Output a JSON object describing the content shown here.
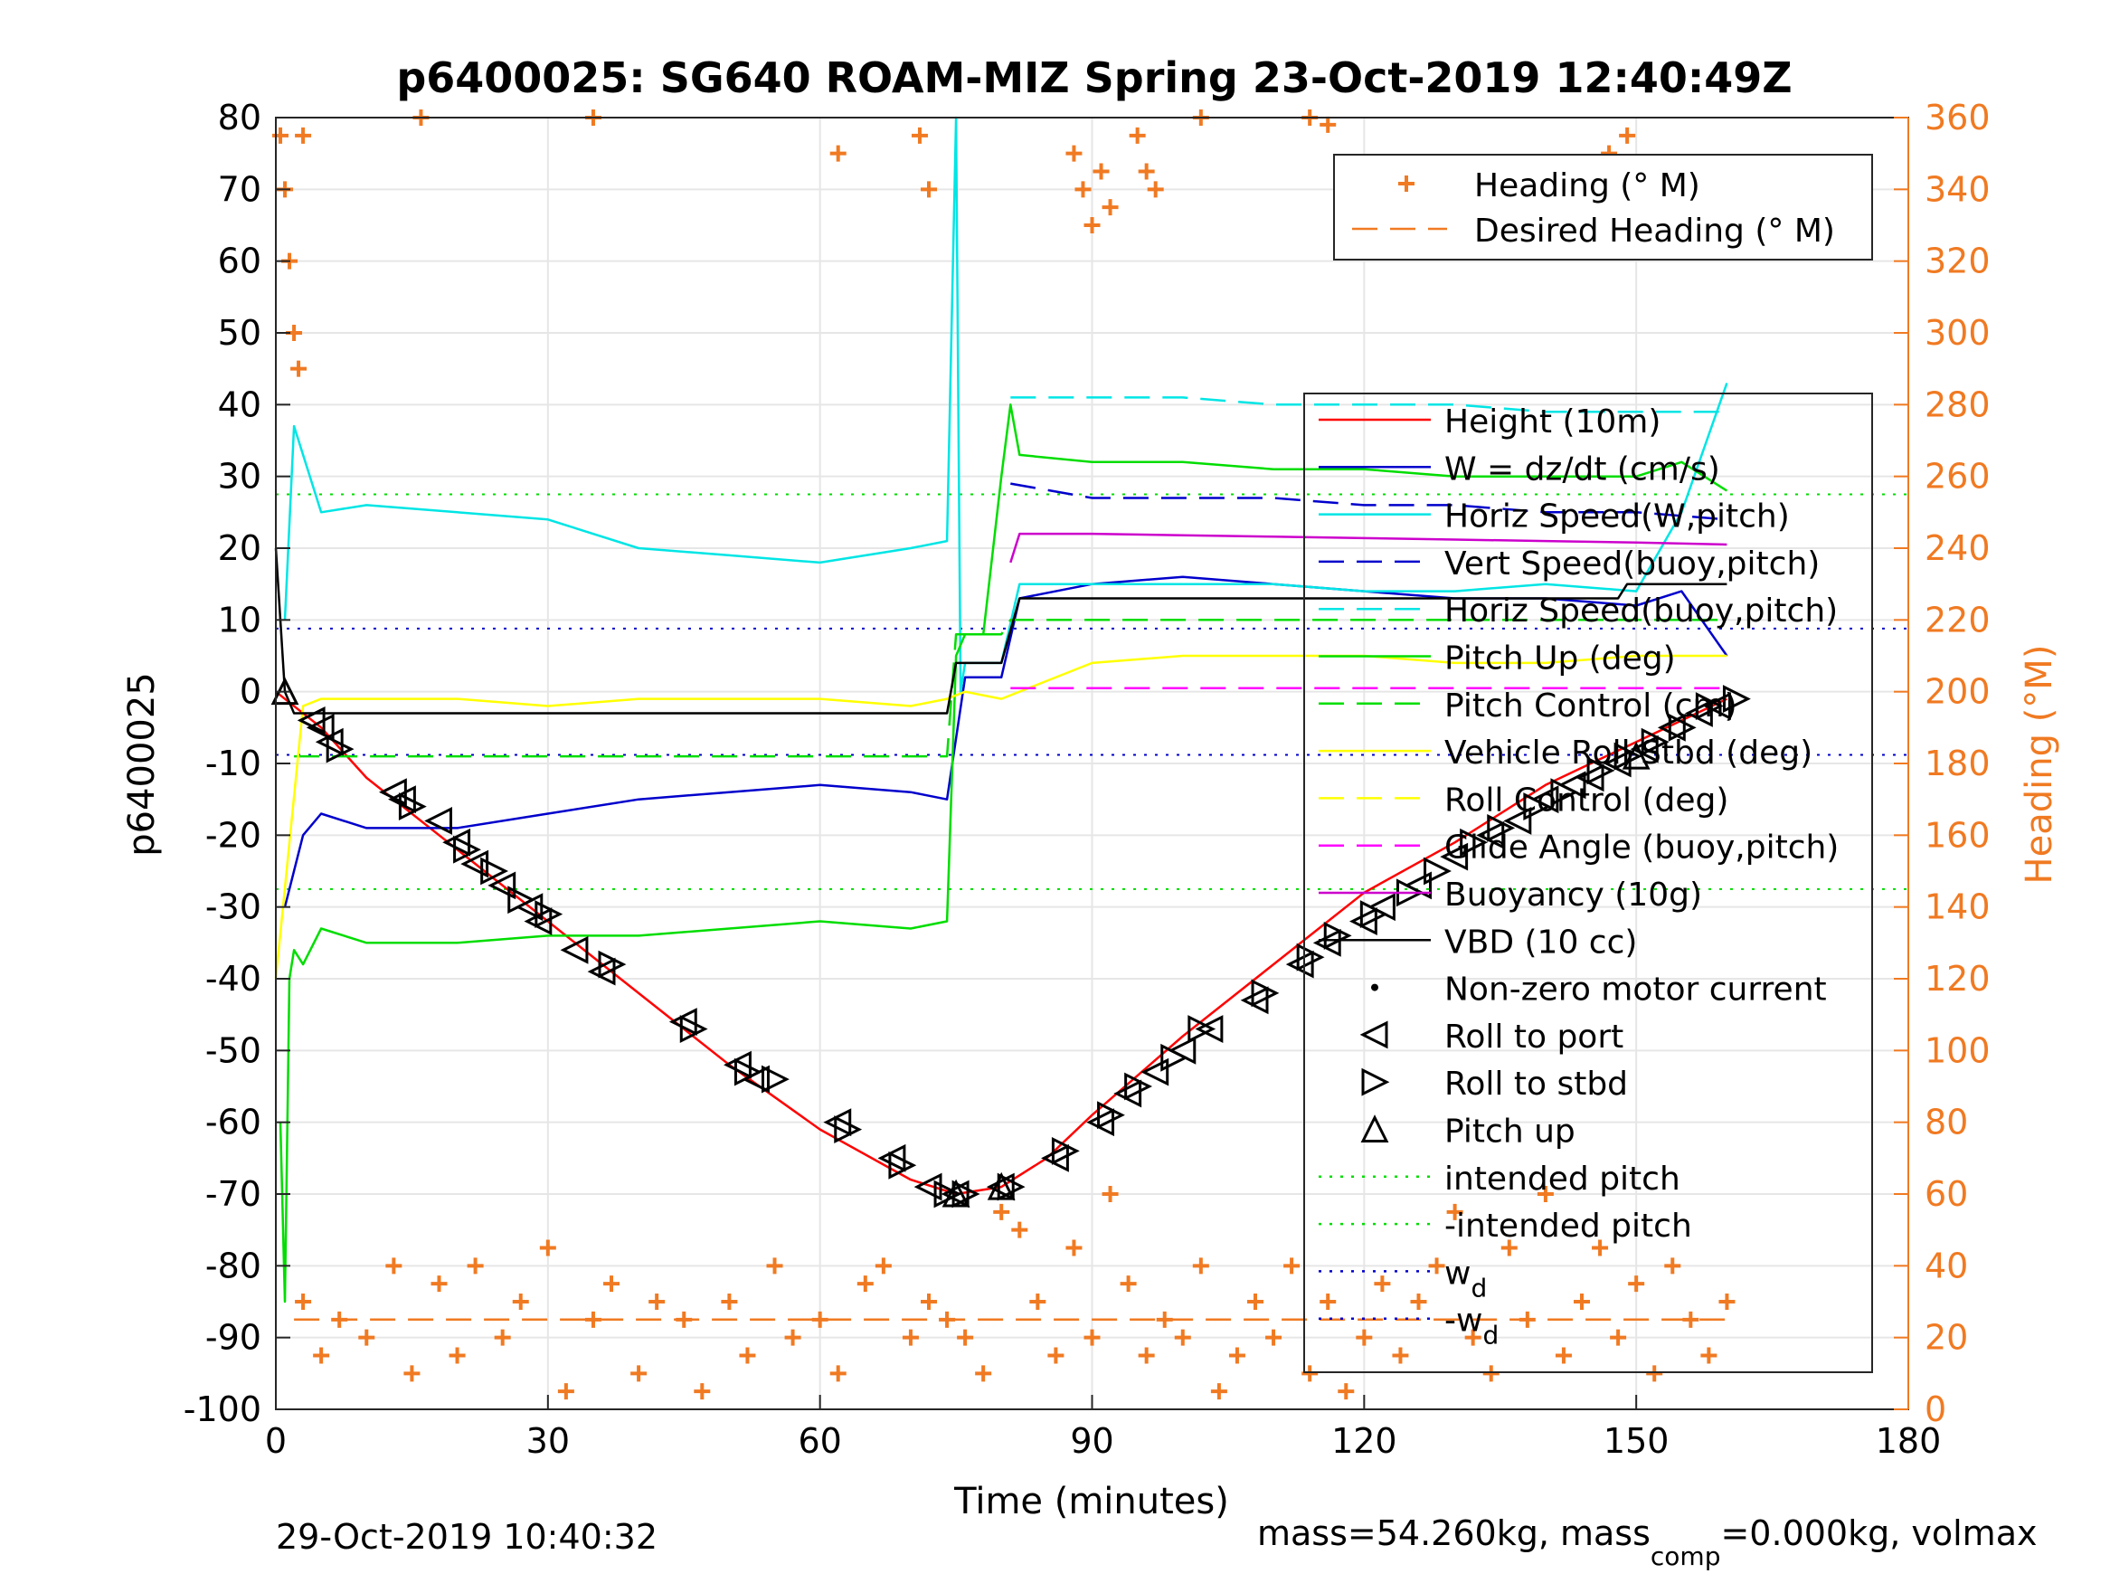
{
  "chart_data": {
    "type": "line",
    "title": "p6400025: SG640 ROAM-MIZ Spring 23-Oct-2019 12:40:49Z",
    "xlabel": "Time (minutes)",
    "ylabel": "p6400025",
    "ylabel_right": "Heading (°M)",
    "xlim": [
      0,
      180
    ],
    "ylim": [
      -100,
      80
    ],
    "ylim_right": [
      0,
      360
    ],
    "xticks": [
      0,
      30,
      60,
      90,
      120,
      150,
      180
    ],
    "yticks": [
      80,
      70,
      60,
      50,
      40,
      30,
      20,
      10,
      0,
      -10,
      -20,
      -30,
      -40,
      -50,
      -60,
      -70,
      -80,
      -90,
      -100
    ],
    "yticks_right": [
      360,
      340,
      320,
      300,
      280,
      260,
      240,
      220,
      200,
      180,
      160,
      140,
      120,
      100,
      80,
      60,
      40,
      20,
      0
    ],
    "grid": true,
    "legend_top": {
      "placement": "top-right",
      "entries": [
        {
          "label": "Heading (° M)",
          "color": "#f07a22",
          "style": "plus"
        },
        {
          "label": "Desired Heading (° M)",
          "color": "#f07a22",
          "style": "dash"
        }
      ]
    },
    "legend_main": {
      "placement": "right",
      "entries": [
        {
          "label": "Height (10m)",
          "color": "#ff0000",
          "style": "solid"
        },
        {
          "label": "W = dz/dt (cm/s)",
          "color": "#0000cc",
          "style": "solid"
        },
        {
          "label": "Horiz Speed(W,pitch)",
          "color": "#00e5e5",
          "style": "solid"
        },
        {
          "label": "Vert Speed(buoy,pitch)",
          "color": "#0000cc",
          "style": "dash"
        },
        {
          "label": "Horiz Speed(buoy,pitch)",
          "color": "#00e5e5",
          "style": "dash"
        },
        {
          "label": "Pitch Up (deg)",
          "color": "#00dd00",
          "style": "solid"
        },
        {
          "label": "Pitch Control (cm)",
          "color": "#00dd00",
          "style": "dash"
        },
        {
          "label": "Vehicle Roll Stbd (deg)",
          "color": "#ffff00",
          "style": "solid"
        },
        {
          "label": "Roll Control (deg)",
          "color": "#ffff00",
          "style": "dash"
        },
        {
          "label": "Glide Angle (buoy,pitch)",
          "color": "#ff00ff",
          "style": "dash"
        },
        {
          "label": "Buoyancy (10g)",
          "color": "#cc00cc",
          "style": "solid"
        },
        {
          "label": "VBD (10 cc)",
          "color": "#000000",
          "style": "solid"
        },
        {
          "label": "Non-zero motor current",
          "color": "#000000",
          "style": "dot"
        },
        {
          "label": "Roll to port",
          "color": "#000000",
          "style": "tri-left"
        },
        {
          "label": "Roll to stbd",
          "color": "#000000",
          "style": "tri-right"
        },
        {
          "label": "Pitch up",
          "color": "#000000",
          "style": "tri-up"
        },
        {
          "label": "intended pitch",
          "color": "#00dd00",
          "style": "dotted"
        },
        {
          "label": "-intended pitch",
          "color": "#00dd00",
          "style": "dotted"
        },
        {
          "label": "w",
          "sub": "d",
          "color": "#0000cc",
          "style": "dotted"
        },
        {
          "label": "-w",
          "sub": "d",
          "color": "#0000cc",
          "style": "dotted"
        }
      ]
    },
    "reference_lines": {
      "intended_pitch": 27.5,
      "neg_intended_pitch": -27.5,
      "w_d": 8.8,
      "neg_w_d": -8.8,
      "desired_heading": 25
    },
    "series": [
      {
        "name": "Height (10m)",
        "color": "#ff0000",
        "x": [
          0,
          5,
          10,
          20,
          30,
          40,
          50,
          60,
          70,
          75,
          80,
          85,
          90,
          100,
          110,
          120,
          130,
          140,
          150,
          160
        ],
        "y": [
          0,
          -5,
          -12,
          -22,
          -32,
          -42,
          -52,
          -61,
          -68,
          -70,
          -69,
          -65,
          -59,
          -48,
          -38,
          -28,
          -21,
          -13,
          -7,
          -1
        ]
      },
      {
        "name": "W = dz/dt (cm/s)",
        "color": "#0000cc",
        "x": [
          1,
          3,
          5,
          10,
          20,
          30,
          40,
          50,
          60,
          70,
          74,
          76,
          80,
          82,
          90,
          100,
          110,
          120,
          130,
          140,
          150,
          155,
          160
        ],
        "y": [
          -30,
          -20,
          -17,
          -19,
          -19,
          -17,
          -15,
          -14,
          -13,
          -14,
          -15,
          2,
          2,
          13,
          15,
          16,
          15,
          14,
          13,
          13,
          12,
          14,
          5
        ]
      },
      {
        "name": "Horiz Speed(W,pitch)",
        "color": "#00e5e5",
        "x": [
          1,
          2,
          5,
          10,
          20,
          30,
          40,
          50,
          60,
          70,
          74,
          75,
          75.5,
          76,
          80,
          82,
          90,
          100,
          110,
          120,
          130,
          140,
          150,
          155,
          160
        ],
        "y": [
          10,
          37,
          25,
          26,
          25,
          24,
          20,
          19,
          18,
          20,
          21,
          80,
          0,
          4,
          4,
          15,
          15,
          15,
          15,
          14,
          14,
          15,
          14,
          25,
          43
        ]
      },
      {
        "name": "Vert Speed(buoy,pitch)",
        "color": "#0000cc",
        "x": [
          81,
          90,
          100,
          110,
          120,
          130,
          140,
          150,
          160
        ],
        "y": [
          29,
          27,
          27,
          27,
          26,
          26,
          25,
          25,
          24
        ]
      },
      {
        "name": "Horiz Speed(buoy,pitch)",
        "color": "#00e5e5",
        "x": [
          81,
          90,
          100,
          110,
          120,
          130,
          140,
          150,
          160
        ],
        "y": [
          41,
          41,
          41,
          40,
          40,
          40,
          39,
          39,
          39
        ]
      },
      {
        "name": "Pitch Up (deg)",
        "color": "#00dd00",
        "x": [
          0.5,
          1,
          1.5,
          2,
          3,
          5,
          10,
          20,
          30,
          40,
          50,
          60,
          70,
          74,
          75,
          76,
          78,
          80,
          81,
          82,
          90,
          100,
          110,
          120,
          130,
          140,
          150,
          155,
          160
        ],
        "y": [
          -60,
          -85,
          -40,
          -36,
          -38,
          -33,
          -35,
          -35,
          -34,
          -34,
          -33,
          -32,
          -33,
          -32,
          5,
          8,
          8,
          30,
          40,
          33,
          32,
          32,
          31,
          31,
          30,
          30,
          30,
          32,
          28
        ]
      },
      {
        "name": "Pitch Control (cm)",
        "color": "#00dd00",
        "x": [
          2,
          74,
          75,
          80,
          81,
          160
        ],
        "y": [
          -9,
          -9,
          8,
          8,
          10,
          10
        ]
      },
      {
        "name": "Vehicle Roll Stbd (deg)",
        "color": "#ffff00",
        "x": [
          0,
          3,
          5,
          10,
          20,
          30,
          40,
          50,
          60,
          70,
          74,
          76,
          80,
          90,
          100,
          110,
          120,
          130,
          140,
          150,
          160
        ],
        "y": [
          -40,
          -2,
          -1,
          -1,
          -1,
          -2,
          -1,
          -1,
          -1,
          -2,
          -1,
          0,
          -1,
          4,
          5,
          5,
          5,
          4,
          4,
          5,
          5
        ]
      },
      {
        "name": "Glide Angle (buoy,pitch)",
        "color": "#ff00ff",
        "x": [
          81,
          160
        ],
        "y": [
          0.5,
          0.5
        ]
      },
      {
        "name": "Buoyancy (10g)",
        "color": "#cc00cc",
        "x": [
          81,
          82,
          90,
          100,
          110,
          120,
          130,
          140,
          150,
          160
        ],
        "y": [
          18,
          22,
          22,
          21.8,
          21.6,
          21.4,
          21.2,
          21,
          20.8,
          20.5
        ]
      },
      {
        "name": "VBD (10 cc)",
        "color": "#000000",
        "x": [
          0,
          1,
          2,
          74,
          75,
          78,
          80,
          82,
          90,
          100,
          110,
          120,
          130,
          140,
          148,
          149,
          160
        ],
        "y": [
          20,
          0,
          -3,
          -3,
          4,
          4,
          4,
          13,
          13,
          13,
          13,
          13,
          13,
          13,
          13,
          15,
          15
        ]
      },
      {
        "name": "Roll to port",
        "color": "#000000",
        "marker": "tri-left",
        "x": [
          4,
          5,
          6,
          13,
          14,
          18,
          20,
          22,
          25,
          28,
          29,
          33,
          36,
          45,
          51,
          53,
          62,
          68,
          72,
          75,
          80,
          86,
          91,
          94,
          97,
          100,
          103,
          108,
          113,
          116,
          120,
          122,
          126,
          130,
          134,
          137,
          140,
          143,
          145,
          148,
          151,
          154,
          157,
          159
        ],
        "y": [
          -4,
          -5,
          -7,
          -14,
          -15,
          -18,
          -21,
          -24,
          -27,
          -30,
          -32,
          -36,
          -39,
          -46,
          -52,
          -54,
          -60,
          -65,
          -69,
          -70,
          -69,
          -65,
          -60,
          -56,
          -53,
          -50,
          -47,
          -43,
          -38,
          -35,
          -32,
          -30,
          -27,
          -23,
          -20,
          -18,
          -15,
          -13,
          -12,
          -10,
          -8,
          -5,
          -3,
          -2
        ]
      },
      {
        "name": "Roll to stbd",
        "color": "#000000",
        "marker": "tri-right",
        "x": [
          7,
          15,
          21,
          24,
          27,
          30,
          37,
          46,
          52,
          55,
          63,
          69,
          74,
          76,
          81,
          87,
          92,
          95,
          99,
          102,
          109,
          114,
          117,
          121,
          125,
          128,
          132,
          135,
          139,
          142,
          146,
          149,
          152,
          155,
          158,
          161
        ],
        "y": [
          -8,
          -16,
          -22,
          -25,
          -29,
          -31,
          -38,
          -47,
          -53,
          -54,
          -61,
          -66,
          -70,
          -70,
          -69,
          -64,
          -59,
          -55,
          -51,
          -47,
          -42,
          -37,
          -34,
          -31,
          -28,
          -25,
          -21,
          -19,
          -16,
          -14,
          -11,
          -9,
          -7,
          -5,
          -2,
          -1
        ]
      },
      {
        "name": "Pitch up",
        "color": "#000000",
        "marker": "tri-up",
        "x": [
          1,
          75,
          80,
          150
        ],
        "y": [
          0,
          -70,
          -69,
          -9
        ]
      },
      {
        "name": "Heading (° M)",
        "color": "#f07a22",
        "marker": "plus",
        "axis": "right",
        "x": [
          0.5,
          1,
          1.5,
          2,
          2.5,
          3,
          16,
          35,
          62,
          71,
          72,
          88,
          89,
          90,
          91,
          92,
          95,
          96,
          97,
          102,
          114,
          116,
          147,
          148,
          149,
          3,
          5,
          7,
          10,
          13,
          15,
          18,
          20,
          22,
          25,
          27,
          30,
          32,
          35,
          37,
          40,
          42,
          45,
          47,
          50,
          52,
          55,
          57,
          60,
          62,
          65,
          67,
          70,
          72,
          74,
          76,
          78,
          80,
          82,
          84,
          86,
          88,
          90,
          92,
          94,
          96,
          98,
          100,
          102,
          104,
          106,
          108,
          110,
          112,
          114,
          116,
          118,
          120,
          122,
          124,
          126,
          128,
          130,
          132,
          134,
          136,
          138,
          140,
          142,
          144,
          146,
          148,
          150,
          152,
          154,
          156,
          158,
          160
        ],
        "y": [
          355,
          340,
          320,
          300,
          290,
          355,
          360,
          360,
          350,
          355,
          340,
          350,
          340,
          330,
          345,
          335,
          355,
          345,
          340,
          360,
          360,
          358,
          350,
          345,
          355,
          30,
          15,
          25,
          20,
          40,
          10,
          35,
          15,
          40,
          20,
          30,
          45,
          5,
          25,
          35,
          10,
          30,
          25,
          5,
          30,
          15,
          40,
          20,
          25,
          10,
          35,
          40,
          20,
          30,
          25,
          20,
          10,
          55,
          50,
          30,
          15,
          45,
          20,
          60,
          35,
          15,
          25,
          20,
          40,
          5,
          15,
          30,
          20,
          40,
          10,
          30,
          5,
          20,
          35,
          15,
          30,
          40,
          55,
          20,
          10,
          45,
          25,
          60,
          15,
          30,
          45,
          20,
          35,
          10,
          40,
          25,
          15,
          30
        ]
      },
      {
        "name": "Desired Heading (° M)",
        "color": "#f07a22",
        "axis": "right",
        "x": [
          2,
          160
        ],
        "y": [
          25,
          25
        ]
      }
    ]
  },
  "footer": {
    "timestamp": "29-Oct-2019 10:40:32",
    "mass_prefix": "mass=54.260kg, mass",
    "mass_sub": "comp",
    "mass_suffix": "=0.000kg, volmax"
  }
}
